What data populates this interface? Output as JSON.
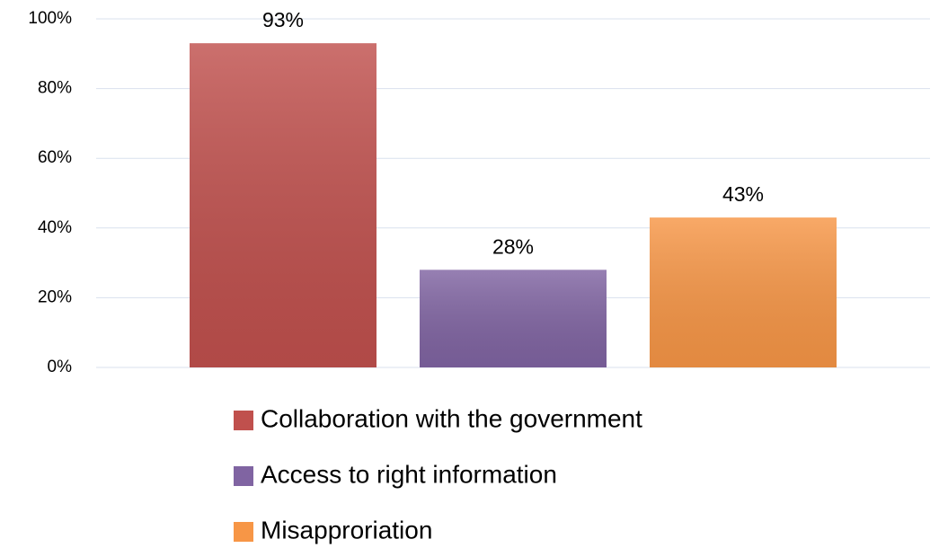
{
  "chart_data": {
    "type": "bar",
    "series": [
      {
        "name": "Collaboration with the government",
        "color": "#c0504d",
        "values": [
          93
        ],
        "value_labels": [
          "93%"
        ]
      },
      {
        "name": "Access to right information",
        "color": "#8064a2",
        "values": [
          28
        ],
        "value_labels": [
          "28%"
        ]
      },
      {
        "name": "Misapproriation",
        "color": "#f79646",
        "values": [
          43
        ],
        "value_labels": [
          "43%"
        ]
      }
    ],
    "ylim": [
      0,
      100
    ],
    "yticks": [
      {
        "value": 0,
        "label": "0%"
      },
      {
        "value": 20,
        "label": "20%"
      },
      {
        "value": 40,
        "label": "40%"
      },
      {
        "value": 60,
        "label": "60%"
      },
      {
        "value": 80,
        "label": "80%"
      },
      {
        "value": 100,
        "label": "100%"
      }
    ],
    "grid": true,
    "legend": "bottom"
  }
}
